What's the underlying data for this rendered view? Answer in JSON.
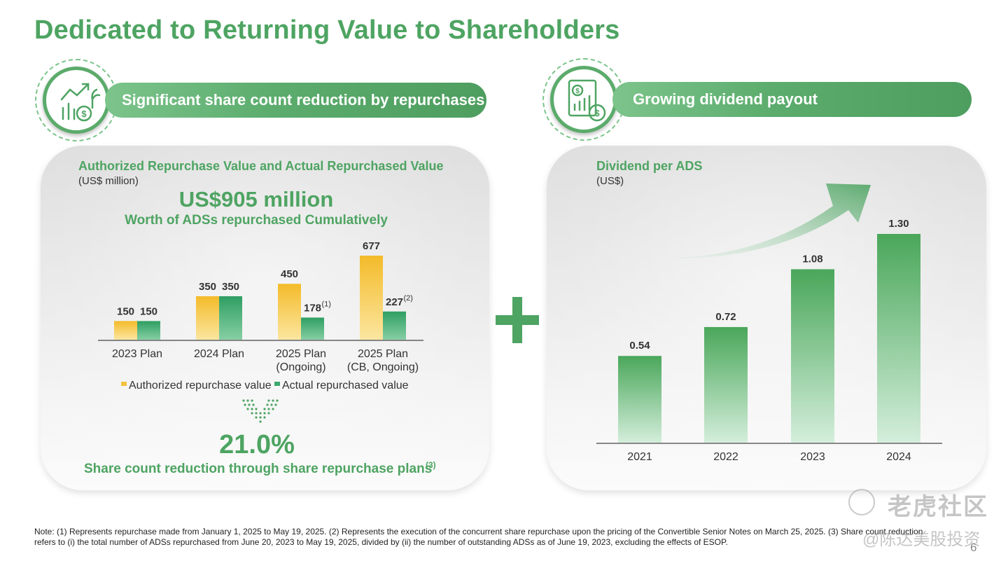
{
  "page": {
    "title": "Dedicated to Returning Value to Shareholders",
    "page_number": "6",
    "note": "Note: (1) Represents repurchase made from January 1, 2025 to May 19, 2025. (2) Represents the execution of the concurrent share repurchase upon the pricing of the Convertible Senior Notes on March 25, 2025. (3) Share count reduction refers to (i) the total number of ADSs repurchased from June 20, 2023 to May 19, 2025, divided by (ii) the number of outstanding ADSs as of June 19, 2023, excluding the effects of ESOP."
  },
  "left_section": {
    "banner": "Significant share count reduction by repurchases",
    "icon": "growth-coins-icon",
    "highlight_value": "US$905 million",
    "highlight_caption": "Worth of ADSs repurchased Cumulatively",
    "reduction_value": "21.0%",
    "reduction_caption": "Share count reduction through share repurchase plans",
    "reduction_footnote": "(3)"
  },
  "right_section": {
    "banner": "Growing dividend payout",
    "icon": "financial-report-icon"
  },
  "plus_sign": "+",
  "watermark": {
    "line1": "老虎社区",
    "line2": "@陈达美股投资"
  },
  "colors": {
    "green": "#4ea462",
    "gold": "#f2c23e",
    "teal": "#3fa86e",
    "banner": "#5bac6d"
  },
  "chart_data": [
    {
      "type": "bar",
      "title": "Authorized Repurchase Value and Actual Repurchased Value",
      "subtitle": "(US$ million)",
      "categories": [
        "2023 Plan",
        "2024 Plan",
        "2025 Plan\n(Ongoing)",
        "2025 Plan\n(CB, Ongoing)"
      ],
      "series": [
        {
          "name": "Authorized repurchase value",
          "color": "#f2c23e",
          "values": [
            150,
            350,
            450,
            677
          ],
          "footnotes": [
            "",
            "",
            "",
            ""
          ]
        },
        {
          "name": "Actual repurchased value",
          "color": "#3fa86e",
          "values": [
            150,
            350,
            178,
            227
          ],
          "footnotes": [
            "",
            "",
            "(1)",
            "(2)"
          ]
        }
      ],
      "ylim": [
        0,
        700
      ],
      "grid": false,
      "legend": "bottom"
    },
    {
      "type": "bar",
      "title": "Dividend per ADS",
      "subtitle": "(US$)",
      "categories": [
        "2021",
        "2022",
        "2023",
        "2024"
      ],
      "values": [
        0.54,
        0.72,
        1.08,
        1.3
      ],
      "labels": [
        "0.54",
        "0.72",
        "1.08",
        "1.30"
      ],
      "color": "#4ea462",
      "ylim": [
        0,
        1.3
      ],
      "grid": false,
      "legend": "none"
    }
  ]
}
